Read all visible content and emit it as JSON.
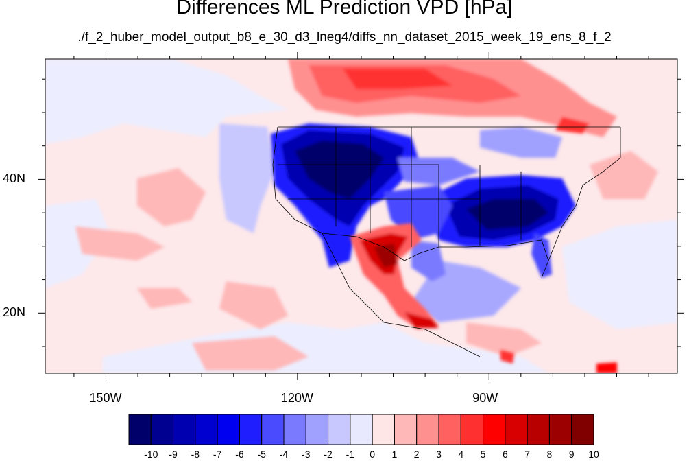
{
  "title": "Differences ML Prediction VPD [hPa]",
  "subtitle": "./f_2_huber_model_output_b8_e_30_d3_lneg4/diffs_nn_dataset_2015_week_19_ens_8_f_2",
  "map": {
    "lon_range": [
      -159.5,
      -60.5
    ],
    "lat_range": [
      11,
      58
    ],
    "x_ticks": [
      {
        "lon": -150,
        "label": "150W"
      },
      {
        "lon": -120,
        "label": "120W"
      },
      {
        "lon": -90,
        "label": "90W"
      }
    ],
    "y_ticks": [
      {
        "lat": 40,
        "label": "40N"
      },
      {
        "lat": 20,
        "label": "20N"
      }
    ]
  },
  "colorbar": {
    "labels": [
      "-10",
      "-9",
      "-8",
      "-7",
      "-6",
      "-5",
      "-4",
      "-3",
      "-2",
      "-1",
      "0",
      "1",
      "2",
      "3",
      "4",
      "5",
      "6",
      "7",
      "8",
      "9",
      "10"
    ],
    "colors": [
      "#00006b",
      "#000090",
      "#0000b0",
      "#0000d0",
      "#0000f0",
      "#1e1eff",
      "#4a4aff",
      "#7a7aff",
      "#a0a0ff",
      "#c8c8ff",
      "#e8e8ff",
      "#ffe6e6",
      "#ffb8b8",
      "#ff9090",
      "#ff6060",
      "#ff3030",
      "#ff0000",
      "#d80000",
      "#b80000",
      "#9c0000",
      "#800000"
    ]
  },
  "colors": {
    "ocean_base": "#fde8ea",
    "neutral": "#eceeff",
    "border": "#000000"
  }
}
